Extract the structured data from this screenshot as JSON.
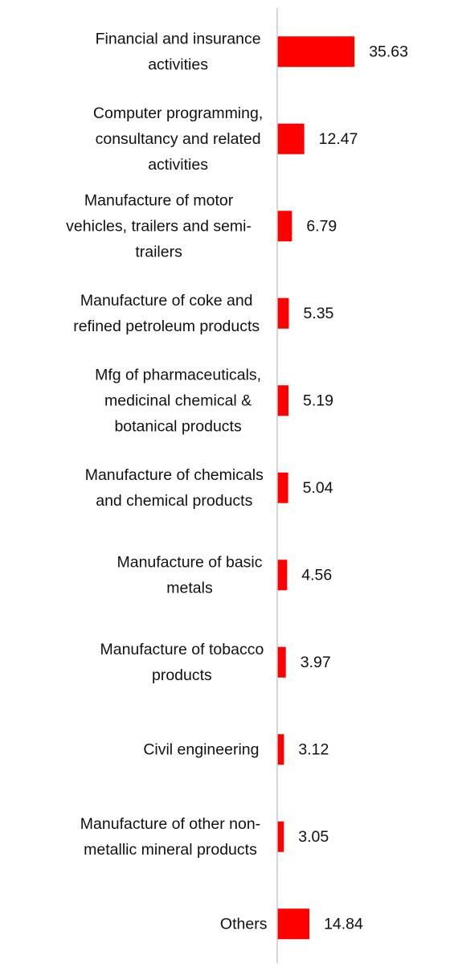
{
  "chart_data": {
    "type": "bar",
    "orientation": "horizontal",
    "title": "",
    "xlabel": "",
    "ylabel": "",
    "bar_color": "#ff0000",
    "axis_color": "#c8c8c8",
    "grid": false,
    "legend": "none",
    "categories": [
      "Financial and insurance activities",
      "Computer programming, consultancy and related activities",
      "Manufacture of motor vehicles, trailers and semi-trailers",
      "Manufacture of coke and refined petroleum products",
      "Mfg of pharmaceuticals, medicinal chemical & botanical products",
      "Manufacture of chemicals and chemical products",
      "Manufacture of basic metals",
      "Manufacture of tobacco products",
      "Civil engineering",
      "Manufacture of other non-metallic mineral products",
      "Others"
    ],
    "values": [
      35.63,
      12.47,
      6.79,
      5.35,
      5.19,
      5.04,
      4.56,
      3.97,
      3.12,
      3.05,
      14.84
    ],
    "value_labels": [
      "35.63",
      "12.47",
      "6.79",
      "5.35",
      "5.19",
      "5.04",
      "4.56",
      "3.97",
      "3.12",
      "3.05",
      "14.84"
    ]
  }
}
